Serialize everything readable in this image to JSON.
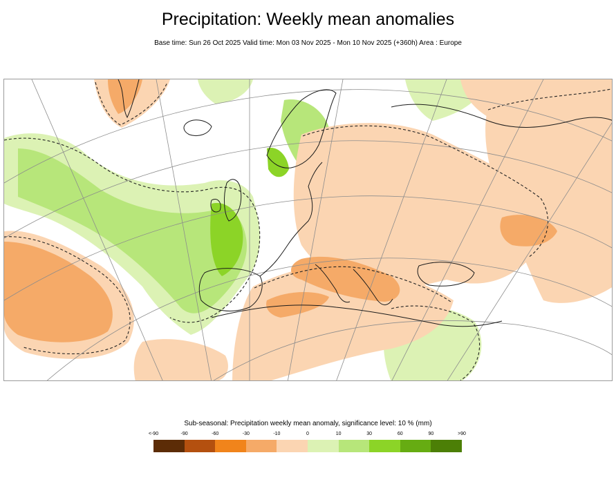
{
  "title": "Precipitation: Weekly mean anomalies",
  "subtitle": "Base time: Sun 26 Oct 2025 Valid time: Mon 03 Nov 2025 - Mon 10 Nov 2025 (+360h) Area : Europe",
  "map": {
    "area": "Europe",
    "projection": "polar-stereographic",
    "gridline_color": "#8c8c8c",
    "coastline_color": "#1a1a1a",
    "significance_contour_style": "dashed"
  },
  "legend": {
    "title": "Sub-seasonal: Precipitation weekly mean anomaly, significance level: 10 % (mm)",
    "tick_labels": [
      "<-90",
      "-90",
      "-60",
      "-30",
      "-10",
      "0",
      "10",
      "30",
      "60",
      "90",
      ">90"
    ],
    "colors": [
      "#5c2c06",
      "#b4500f",
      "#f1841b",
      "#f5aa68",
      "#fbd5b2",
      "#dcf2b4",
      "#b7e67a",
      "#8cd427",
      "#66ac12",
      "#4c7f06"
    ]
  }
}
